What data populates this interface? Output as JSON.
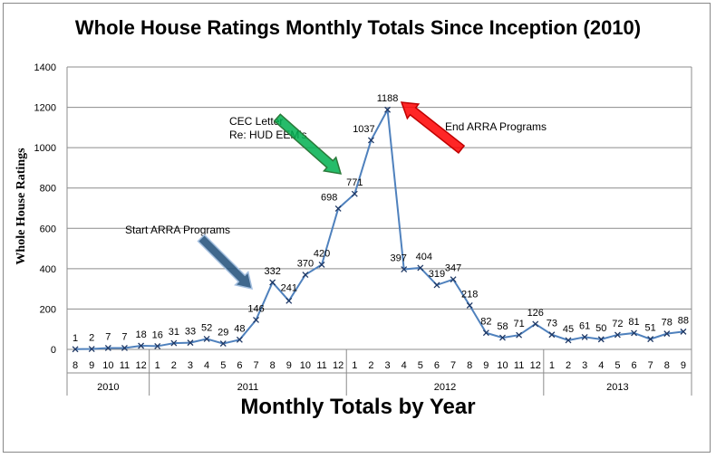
{
  "chart_data": {
    "type": "line",
    "title": "Whole House Ratings Monthly Totals Since Inception (2010)",
    "xlabel": "Monthly Totals by Year",
    "ylabel": "Whole House Ratings",
    "ylim": [
      0,
      1400
    ],
    "yticks": [
      "0",
      "200",
      "400",
      "600",
      "800",
      "1000",
      "1200",
      "1400"
    ],
    "grid": true,
    "series_color": "#4f81bd",
    "months": [
      "8",
      "9",
      "10",
      "11",
      "12",
      "1",
      "2",
      "3",
      "4",
      "5",
      "6",
      "7",
      "8",
      "9",
      "10",
      "11",
      "12",
      "1",
      "2",
      "3",
      "4",
      "5",
      "6",
      "7",
      "8",
      "9",
      "10",
      "11",
      "12",
      "1",
      "2",
      "3",
      "4",
      "5",
      "6",
      "7",
      "8",
      "9"
    ],
    "values": [
      1,
      2,
      7,
      7,
      18,
      16,
      31,
      33,
      52,
      29,
      48,
      146,
      332,
      241,
      370,
      420,
      698,
      771,
      1037,
      1188,
      397,
      404,
      319,
      347,
      218,
      82,
      58,
      71,
      126,
      73,
      45,
      61,
      50,
      72,
      81,
      51,
      78,
      88
    ],
    "years": [
      {
        "label": "2010",
        "start": 0,
        "count": 5
      },
      {
        "label": "2011",
        "start": 5,
        "count": 12
      },
      {
        "label": "2012",
        "start": 17,
        "count": 12
      },
      {
        "label": "2013",
        "start": 29,
        "count": 9
      }
    ],
    "annotations": [
      {
        "lines": [
          "CEC Letter",
          "Re: HUD EEM's"
        ],
        "arrow_color": "#00b050",
        "arrow_stroke": "#2a7a3a"
      },
      {
        "lines": [
          "Start ARRA Programs"
        ],
        "arrow_color": "#1f4e79",
        "arrow_stroke": "#a5c0e0"
      },
      {
        "lines": [
          "End ARRA Programs"
        ],
        "arrow_color": "#ff0000",
        "arrow_stroke": "#c00000"
      }
    ]
  }
}
